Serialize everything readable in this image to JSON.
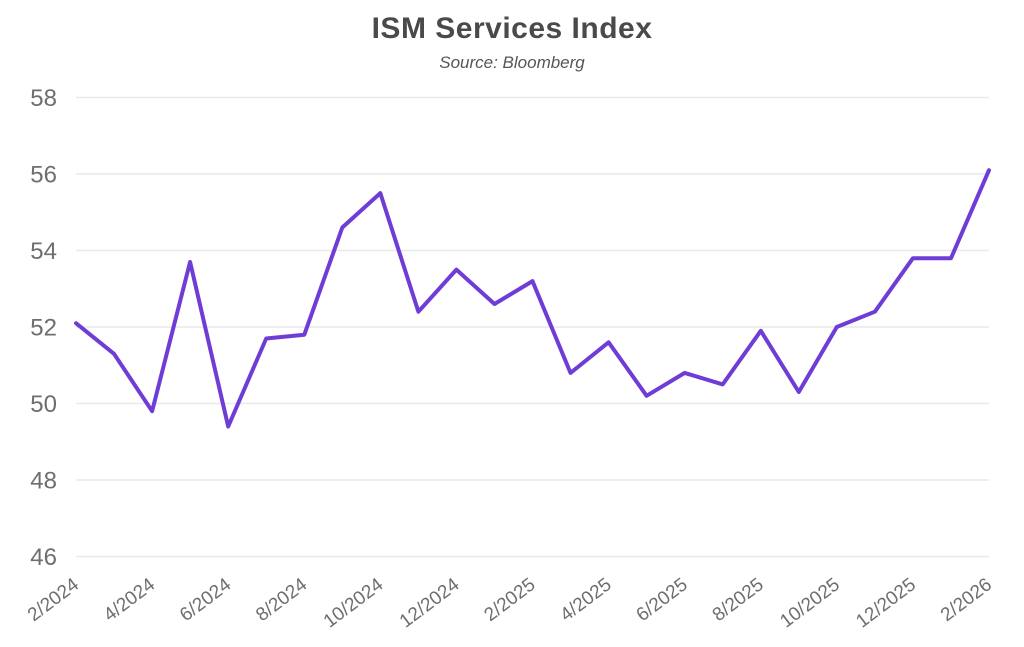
{
  "chart_data": {
    "type": "line",
    "title": "ISM Services Index",
    "subtitle": "Source: Bloomberg",
    "x": [
      "2/2024",
      "3/2024",
      "4/2024",
      "5/2024",
      "6/2024",
      "7/2024",
      "8/2024",
      "9/2024",
      "10/2024",
      "11/2024",
      "12/2024",
      "1/2025",
      "2/2025",
      "3/2025",
      "4/2025",
      "5/2025",
      "6/2025",
      "7/2025",
      "8/2025",
      "9/2025",
      "10/2025",
      "11/2025",
      "12/2025",
      "1/2026",
      "2/2026"
    ],
    "values": [
      52.1,
      51.3,
      49.8,
      53.7,
      49.4,
      51.7,
      51.8,
      54.6,
      55.5,
      52.4,
      53.5,
      52.6,
      53.2,
      50.8,
      51.6,
      50.2,
      50.8,
      50.5,
      51.9,
      50.3,
      52.0,
      52.4,
      53.8,
      53.8,
      56.1
    ],
    "x_tick_labels": [
      "2/2024",
      "4/2024",
      "6/2024",
      "8/2024",
      "10/2024",
      "12/2024",
      "2/2025",
      "4/2025",
      "6/2025",
      "8/2025",
      "10/2025",
      "12/2025",
      "2/2026"
    ],
    "y_ticks": [
      46,
      48,
      50,
      52,
      54,
      56,
      58
    ],
    "ylim": [
      46,
      58
    ],
    "grid": true,
    "legend": "none",
    "line_color": "#6f3dd6",
    "grid_color": "#e9e9e9",
    "title_color": "#4a4a4a",
    "tick_label_color": "#6e6e6e"
  }
}
